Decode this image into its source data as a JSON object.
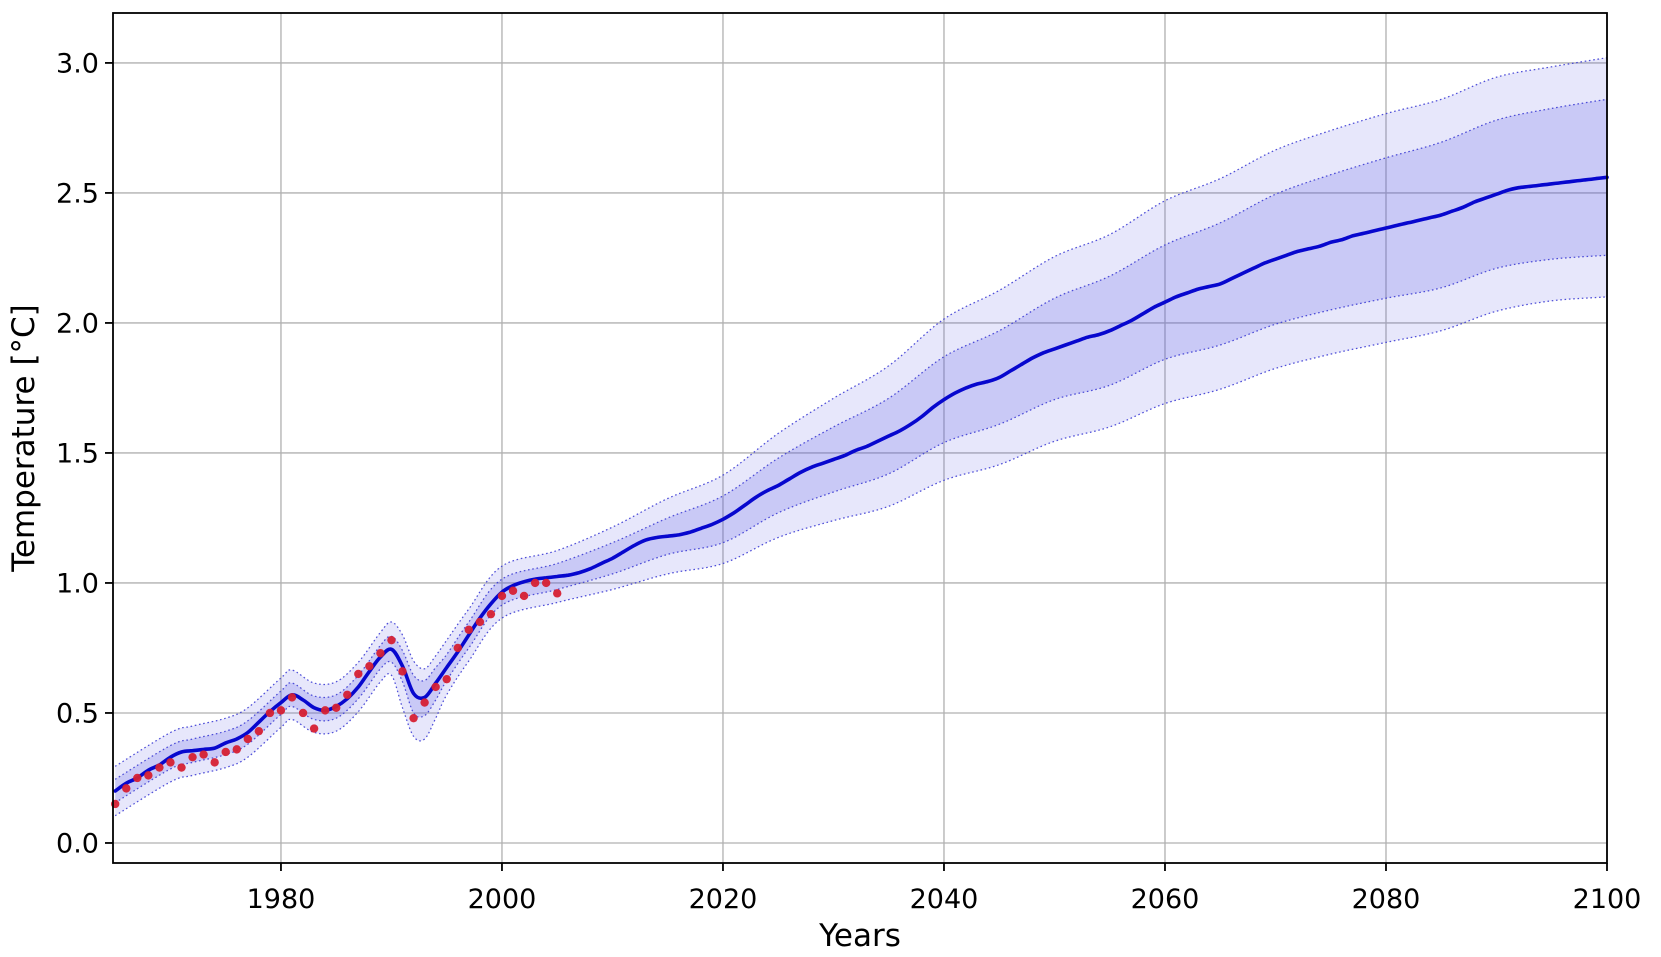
{
  "page": {
    "background": "#ffffff"
  },
  "chart_data": {
    "type": "line",
    "title": "",
    "xlabel": "Years",
    "ylabel": "Temperature [°C]",
    "xlim": [
      1964.8,
      2100
    ],
    "ylim": [
      -0.077,
      3.192
    ],
    "xticks": [
      1980,
      2000,
      2020,
      2040,
      2060,
      2080,
      2100
    ],
    "xtick_labels": [
      "1980",
      "2000",
      "2020",
      "2040",
      "2060",
      "2080",
      "2100"
    ],
    "yticks": [
      0.0,
      0.5,
      1.0,
      1.5,
      2.0,
      2.5,
      3.0
    ],
    "ytick_labels": [
      "0.0",
      "0.5",
      "1.0",
      "1.5",
      "2.0",
      "2.5",
      "3.0"
    ],
    "grid": true,
    "legend_position": "none",
    "colors": {
      "median_line": "#0707ce",
      "band_edge": "#3c3cd4",
      "inner_band_fill": "rgba(92,92,226,0.21)",
      "outer_band_fill": "rgba(92,92,226,0.15)",
      "observations": "#d62033",
      "grid": "#b0b0b0",
      "axes": "#000000",
      "background": "#ffffff"
    },
    "series": [
      {
        "name": "median-projection",
        "type": "line",
        "x": [
          1965,
          1966,
          1967,
          1968,
          1969,
          1970,
          1971,
          1972,
          1973,
          1974,
          1975,
          1976,
          1977,
          1978,
          1979,
          1980,
          1981,
          1982,
          1983,
          1984,
          1985,
          1986,
          1987,
          1988,
          1989,
          1990,
          1991,
          1992,
          1993,
          1994,
          1995,
          1996,
          1997,
          1998,
          1999,
          2000,
          2001,
          2002,
          2003,
          2004,
          2005,
          2006,
          2007,
          2008,
          2009,
          2010,
          2011,
          2012,
          2013,
          2014,
          2015,
          2016,
          2017,
          2018,
          2019,
          2020,
          2021,
          2022,
          2023,
          2024,
          2025,
          2026,
          2027,
          2028,
          2029,
          2030,
          2031,
          2032,
          2033,
          2034,
          2035,
          2036,
          2037,
          2038,
          2039,
          2040,
          2041,
          2042,
          2043,
          2044,
          2045,
          2046,
          2047,
          2048,
          2049,
          2050,
          2051,
          2052,
          2053,
          2054,
          2055,
          2056,
          2057,
          2058,
          2059,
          2060,
          2061,
          2062,
          2063,
          2064,
          2065,
          2066,
          2067,
          2068,
          2069,
          2070,
          2071,
          2072,
          2073,
          2074,
          2075,
          2076,
          2077,
          2078,
          2079,
          2080,
          2081,
          2082,
          2083,
          2084,
          2085,
          2086,
          2087,
          2088,
          2089,
          2090,
          2091,
          2092,
          2093,
          2094,
          2095,
          2096,
          2097,
          2098,
          2099,
          2100
        ],
        "y": [
          0.2,
          0.23,
          0.25,
          0.28,
          0.3,
          0.33,
          0.35,
          0.355,
          0.36,
          0.365,
          0.385,
          0.4,
          0.425,
          0.465,
          0.505,
          0.54,
          0.57,
          0.55,
          0.52,
          0.51,
          0.525,
          0.555,
          0.6,
          0.66,
          0.715,
          0.745,
          0.68,
          0.575,
          0.56,
          0.615,
          0.675,
          0.735,
          0.8,
          0.865,
          0.92,
          0.965,
          0.99,
          1.005,
          1.015,
          1.02,
          1.025,
          1.03,
          1.04,
          1.055,
          1.075,
          1.095,
          1.12,
          1.145,
          1.165,
          1.175,
          1.18,
          1.185,
          1.195,
          1.21,
          1.225,
          1.245,
          1.27,
          1.3,
          1.33,
          1.355,
          1.375,
          1.4,
          1.425,
          1.445,
          1.46,
          1.475,
          1.49,
          1.51,
          1.525,
          1.545,
          1.565,
          1.585,
          1.61,
          1.64,
          1.675,
          1.705,
          1.73,
          1.75,
          1.765,
          1.775,
          1.79,
          1.815,
          1.84,
          1.865,
          1.885,
          1.9,
          1.915,
          1.93,
          1.945,
          1.955,
          1.97,
          1.99,
          2.01,
          2.035,
          2.06,
          2.08,
          2.1,
          2.115,
          2.13,
          2.14,
          2.15,
          2.17,
          2.19,
          2.21,
          2.23,
          2.245,
          2.26,
          2.275,
          2.285,
          2.295,
          2.31,
          2.32,
          2.335,
          2.345,
          2.355,
          2.365,
          2.375,
          2.385,
          2.395,
          2.405,
          2.415,
          2.43,
          2.445,
          2.465,
          2.48,
          2.495,
          2.51,
          2.52,
          2.525,
          2.53,
          2.535,
          2.54,
          2.545,
          2.55,
          2.555,
          2.56
        ]
      },
      {
        "name": "observations",
        "type": "scatter",
        "points": [
          [
            1965,
            0.15
          ],
          [
            1966,
            0.21
          ],
          [
            1967,
            0.25
          ],
          [
            1968,
            0.26
          ],
          [
            1969,
            0.29
          ],
          [
            1970,
            0.31
          ],
          [
            1971,
            0.29
          ],
          [
            1972,
            0.33
          ],
          [
            1973,
            0.34
          ],
          [
            1974,
            0.31
          ],
          [
            1975,
            0.35
          ],
          [
            1976,
            0.36
          ],
          [
            1977,
            0.4
          ],
          [
            1978,
            0.43
          ],
          [
            1979,
            0.5
          ],
          [
            1980,
            0.51
          ],
          [
            1981,
            0.56
          ],
          [
            1982,
            0.5
          ],
          [
            1983,
            0.44
          ],
          [
            1984,
            0.51
          ],
          [
            1985,
            0.52
          ],
          [
            1986,
            0.57
          ],
          [
            1987,
            0.65
          ],
          [
            1988,
            0.68
          ],
          [
            1989,
            0.73
          ],
          [
            1990,
            0.78
          ],
          [
            1991,
            0.66
          ],
          [
            1992,
            0.48
          ],
          [
            1993,
            0.54
          ],
          [
            1994,
            0.6
          ],
          [
            1995,
            0.63
          ],
          [
            1996,
            0.75
          ],
          [
            1997,
            0.82
          ],
          [
            1998,
            0.85
          ],
          [
            1999,
            0.88
          ],
          [
            2000,
            0.95
          ],
          [
            2001,
            0.97
          ],
          [
            2002,
            0.95
          ],
          [
            2003,
            1.0
          ],
          [
            2004,
            1.0
          ],
          [
            2005,
            0.96
          ]
        ]
      }
    ],
    "bands": [
      {
        "name": "inner-uncertainty-band",
        "edge_style": "dotted",
        "points_year_low_high": [
          [
            1965,
            0.155,
            0.245
          ],
          [
            1970,
            0.285,
            0.375
          ],
          [
            1972,
            0.31,
            0.4
          ],
          [
            1975,
            0.34,
            0.43
          ],
          [
            1977,
            0.38,
            0.47
          ],
          [
            1980,
            0.495,
            0.585
          ],
          [
            1981,
            0.525,
            0.615
          ],
          [
            1983,
            0.475,
            0.565
          ],
          [
            1985,
            0.48,
            0.57
          ],
          [
            1987,
            0.555,
            0.645
          ],
          [
            1989,
            0.67,
            0.76
          ],
          [
            1990,
            0.695,
            0.795
          ],
          [
            1991,
            0.62,
            0.74
          ],
          [
            1992,
            0.5,
            0.645
          ],
          [
            1993,
            0.49,
            0.625
          ],
          [
            1994,
            0.55,
            0.675
          ],
          [
            1995,
            0.625,
            0.725
          ],
          [
            1997,
            0.75,
            0.85
          ],
          [
            2000,
            0.915,
            1.015
          ],
          [
            2005,
            0.975,
            1.075
          ],
          [
            2010,
            1.035,
            1.155
          ],
          [
            2015,
            1.11,
            1.25
          ],
          [
            2020,
            1.155,
            1.335
          ],
          [
            2025,
            1.27,
            1.48
          ],
          [
            2030,
            1.35,
            1.6
          ],
          [
            2035,
            1.42,
            1.71
          ],
          [
            2040,
            1.54,
            1.87
          ],
          [
            2045,
            1.61,
            1.97
          ],
          [
            2050,
            1.705,
            2.095
          ],
          [
            2055,
            1.76,
            2.18
          ],
          [
            2060,
            1.86,
            2.3
          ],
          [
            2065,
            1.915,
            2.385
          ],
          [
            2070,
            1.995,
            2.495
          ],
          [
            2075,
            2.05,
            2.57
          ],
          [
            2080,
            2.095,
            2.635
          ],
          [
            2085,
            2.135,
            2.695
          ],
          [
            2090,
            2.21,
            2.78
          ],
          [
            2095,
            2.245,
            2.825
          ],
          [
            2100,
            2.26,
            2.86
          ]
        ]
      },
      {
        "name": "outer-uncertainty-band",
        "edge_style": "dotted",
        "points_year_low_high": [
          [
            1965,
            0.105,
            0.295
          ],
          [
            1970,
            0.235,
            0.425
          ],
          [
            1972,
            0.26,
            0.45
          ],
          [
            1975,
            0.29,
            0.48
          ],
          [
            1977,
            0.33,
            0.52
          ],
          [
            1980,
            0.445,
            0.635
          ],
          [
            1981,
            0.475,
            0.665
          ],
          [
            1983,
            0.425,
            0.615
          ],
          [
            1985,
            0.43,
            0.62
          ],
          [
            1987,
            0.505,
            0.695
          ],
          [
            1989,
            0.62,
            0.81
          ],
          [
            1990,
            0.645,
            0.85
          ],
          [
            1991,
            0.52,
            0.8
          ],
          [
            1992,
            0.41,
            0.7
          ],
          [
            1993,
            0.4,
            0.67
          ],
          [
            1994,
            0.48,
            0.72
          ],
          [
            1995,
            0.57,
            0.78
          ],
          [
            1997,
            0.7,
            0.9
          ],
          [
            2000,
            0.865,
            1.065
          ],
          [
            2005,
            0.925,
            1.125
          ],
          [
            2010,
            0.975,
            1.215
          ],
          [
            2015,
            1.035,
            1.325
          ],
          [
            2020,
            1.075,
            1.415
          ],
          [
            2025,
            1.175,
            1.575
          ],
          [
            2030,
            1.24,
            1.71
          ],
          [
            2035,
            1.295,
            1.835
          ],
          [
            2040,
            1.395,
            2.015
          ],
          [
            2045,
            1.455,
            2.125
          ],
          [
            2050,
            1.545,
            2.255
          ],
          [
            2055,
            1.6,
            2.34
          ],
          [
            2060,
            1.69,
            2.47
          ],
          [
            2065,
            1.745,
            2.555
          ],
          [
            2070,
            1.825,
            2.665
          ],
          [
            2075,
            1.88,
            2.74
          ],
          [
            2080,
            1.925,
            2.805
          ],
          [
            2085,
            1.97,
            2.86
          ],
          [
            2090,
            2.045,
            2.945
          ],
          [
            2095,
            2.085,
            2.985
          ],
          [
            2100,
            2.1,
            3.02
          ]
        ]
      }
    ]
  }
}
